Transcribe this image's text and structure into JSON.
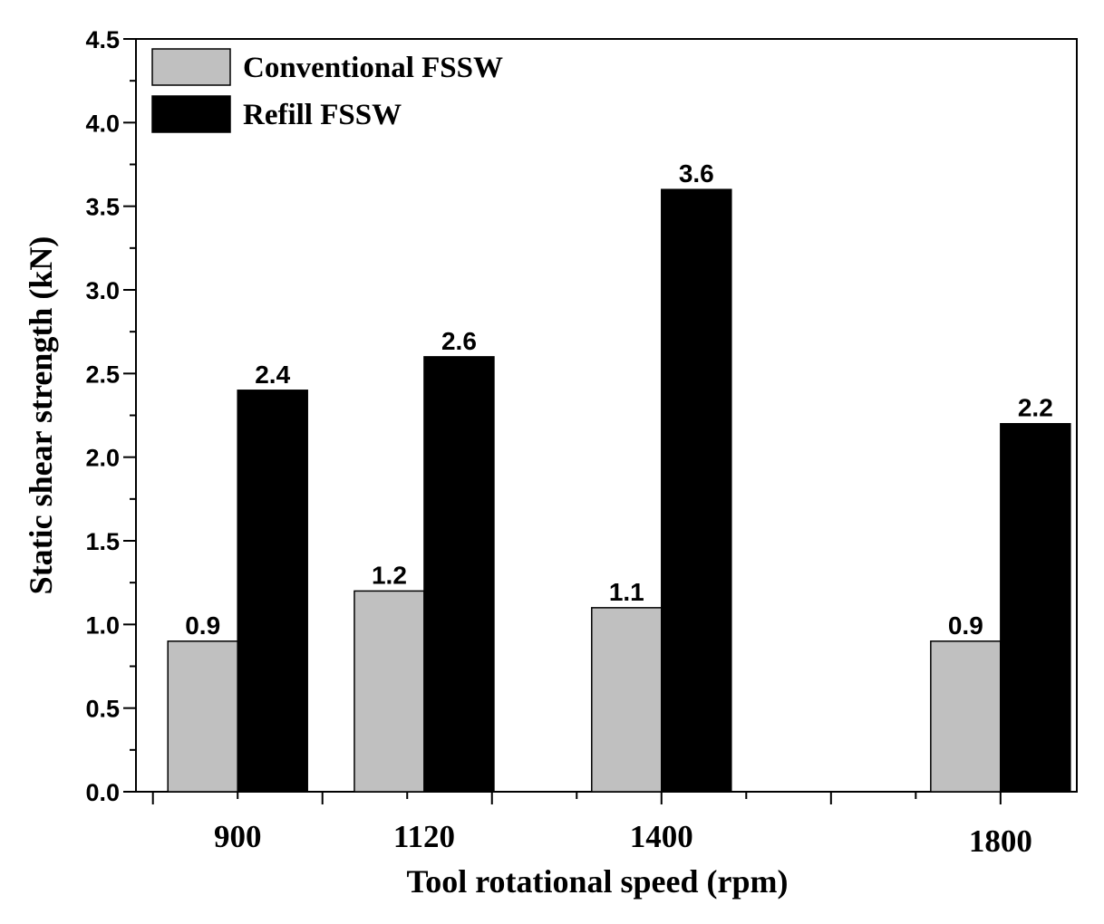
{
  "chart_data": {
    "type": "bar",
    "title": "",
    "xlabel": "Tool rotational speed (rpm)",
    "ylabel": "Static shear strength (kN)",
    "ylim": [
      0,
      4.5
    ],
    "yticks": [
      "0.0",
      "0.5",
      "1.0",
      "1.5",
      "2.0",
      "2.5",
      "3.0",
      "3.5",
      "4.0",
      "4.5"
    ],
    "x_axis_range": [
      780,
      1890
    ],
    "categories": [
      "900",
      "1120",
      "1400",
      "1800"
    ],
    "category_x": [
      900,
      1120,
      1400,
      1800
    ],
    "series": [
      {
        "name": "Conventional FSSW",
        "color": "#c0c0c0",
        "values": [
          0.9,
          1.2,
          1.1,
          0.9
        ],
        "labels": [
          "0.9",
          "1.2",
          "1.1",
          "0.9"
        ]
      },
      {
        "name": "Refill FSSW",
        "color": "#000000",
        "values": [
          2.4,
          2.6,
          3.6,
          2.2
        ],
        "labels": [
          "2.4",
          "2.6",
          "3.6",
          "2.2"
        ]
      }
    ],
    "legend_position": "top-left",
    "grid": false
  }
}
